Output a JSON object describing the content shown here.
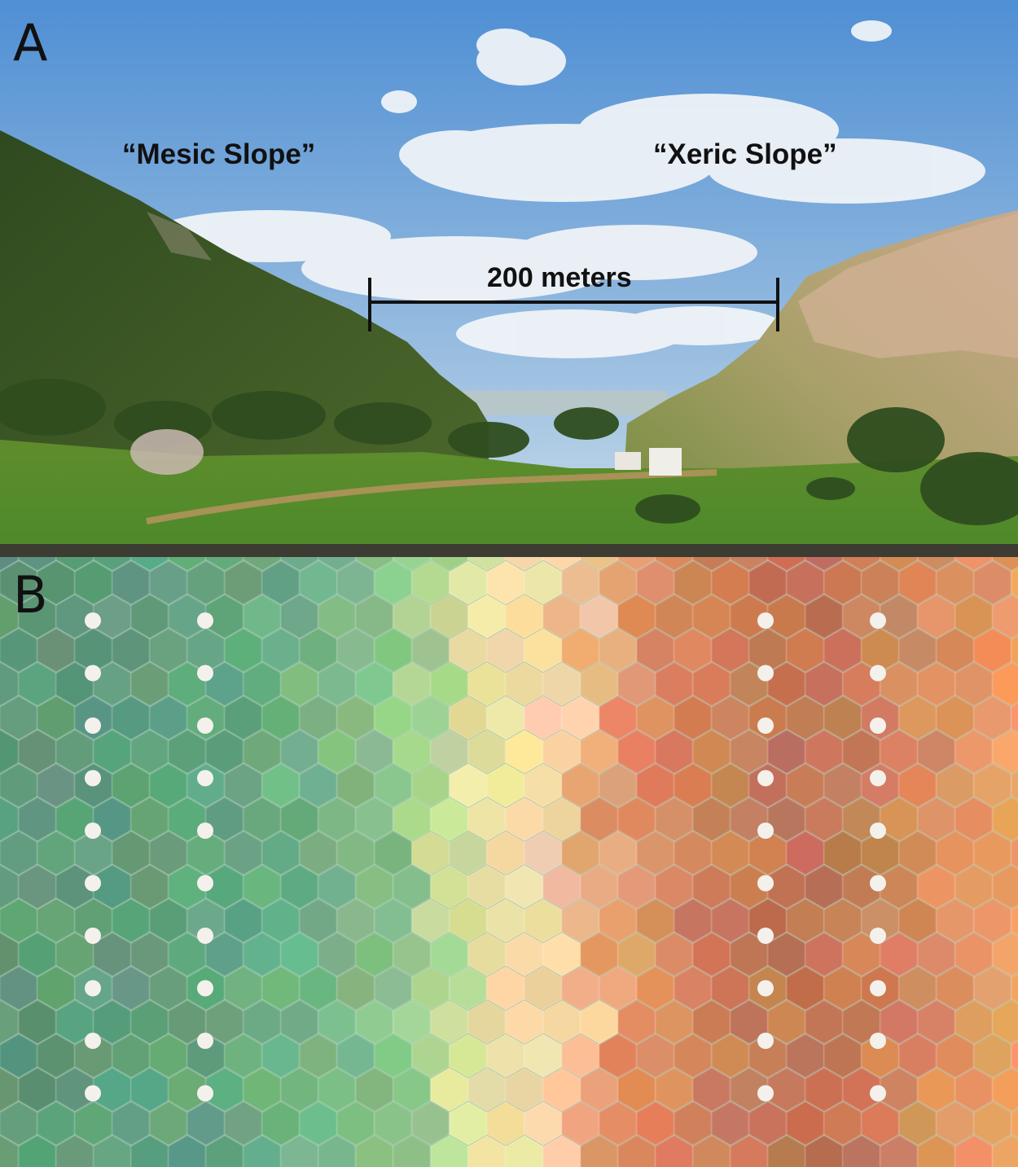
{
  "panels": {
    "a": {
      "letter": "A",
      "mesic_label": "“Mesic Slope”",
      "xeric_label": "“Xeric Slope”",
      "scale_label": "200 meters"
    },
    "b": {
      "letter": "B"
    }
  },
  "colors": {
    "mesic_green": "#5e9a78",
    "transition_yellow": "#f4e9a8",
    "xeric_orange": "#d9845a",
    "sample_dot": "#f4f1ec"
  }
}
